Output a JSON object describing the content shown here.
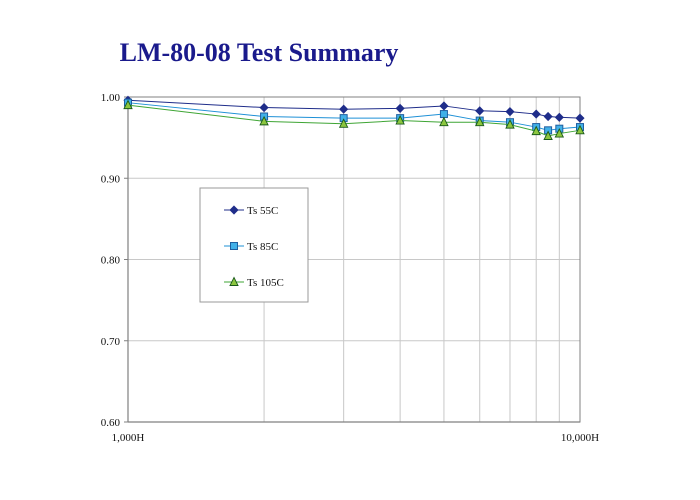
{
  "page": {
    "title": "LM-80-08 Test Summary"
  },
  "colors": {
    "gridline": "#c8c8c8",
    "axis": "#808080",
    "plot_border": "#808080",
    "series": [
      "#1f2d8a",
      "#1e90d6",
      "#3fa535"
    ],
    "marker_fill": [
      "#1f2d8a",
      "#40b0e8",
      "#8cc63f"
    ],
    "marker_stroke": [
      "#1f2d8a",
      "#1f5fa0",
      "#1a5a1a"
    ]
  },
  "chart_data": {
    "type": "line",
    "title": "LM-80-08 Test Summary",
    "xlabel": "",
    "ylabel": "",
    "x_scale": "log",
    "xlim": [
      1000,
      10000
    ],
    "ylim": [
      0.6,
      1.0
    ],
    "x_tick_labels": [
      {
        "value": 1000,
        "label": "1,000H"
      },
      {
        "value": 10000,
        "label": "10,000H"
      }
    ],
    "x_gridlines": [
      1000,
      2000,
      3000,
      4000,
      5000,
      6000,
      7000,
      8000,
      9000,
      10000
    ],
    "y_ticks": [
      {
        "value": 0.6,
        "label": "0.60"
      },
      {
        "value": 0.7,
        "label": "0.70"
      },
      {
        "value": 0.8,
        "label": "0.80"
      },
      {
        "value": 0.9,
        "label": "0.90"
      },
      {
        "value": 1.0,
        "label": "1.00"
      }
    ],
    "grid": true,
    "legend_position": "left-center",
    "series": [
      {
        "name": "Ts 55C",
        "marker": "diamond",
        "x": [
          1000,
          2000,
          3000,
          4000,
          5000,
          6000,
          7000,
          8000,
          8500,
          9000,
          10000
        ],
        "y": [
          0.996,
          0.987,
          0.985,
          0.986,
          0.989,
          0.983,
          0.982,
          0.979,
          0.976,
          0.975,
          0.974
        ]
      },
      {
        "name": "Ts 85C",
        "marker": "square",
        "x": [
          1000,
          2000,
          3000,
          4000,
          5000,
          6000,
          7000,
          8000,
          8500,
          9000,
          10000
        ],
        "y": [
          0.993,
          0.976,
          0.974,
          0.974,
          0.979,
          0.971,
          0.969,
          0.963,
          0.959,
          0.961,
          0.963
        ]
      },
      {
        "name": "Ts 105C",
        "marker": "triangle",
        "x": [
          1000,
          2000,
          3000,
          4000,
          5000,
          6000,
          7000,
          8000,
          8500,
          9000,
          10000
        ],
        "y": [
          0.99,
          0.97,
          0.967,
          0.971,
          0.969,
          0.969,
          0.966,
          0.958,
          0.952,
          0.955,
          0.959
        ]
      }
    ]
  }
}
